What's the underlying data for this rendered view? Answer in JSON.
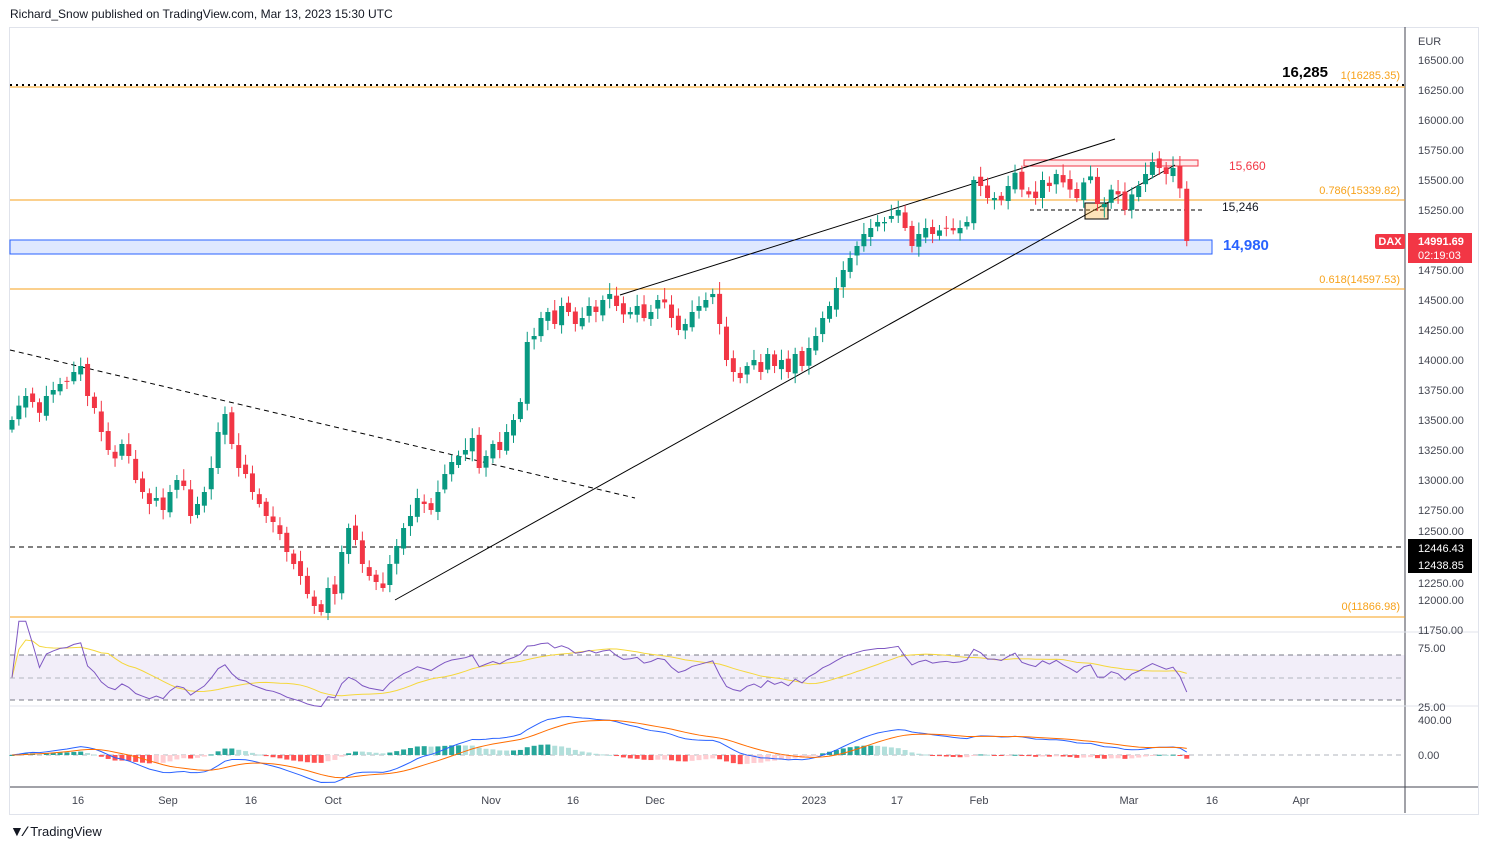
{
  "header": {
    "text": "Richard_Snow published on TradingView.com, Mar 13, 2023 15:30 UTC"
  },
  "logo": {
    "text": "TradingView"
  },
  "colors": {
    "up": "#089981",
    "down": "#f23645",
    "fib": "#f7a21b",
    "zone": "#2962ff",
    "rsi": "#7e57c2",
    "rsi_ma": "#f5d73b",
    "macd": "#2962ff",
    "signal": "#ff6d00"
  },
  "chart_data": {
    "type": "candlestick",
    "symbol": "DAX",
    "currency": "EUR",
    "last_price": "14991.69",
    "countdown": "02:19:03",
    "ylim": [
      11750,
      16600
    ],
    "y_ticks": [
      "16500.00",
      "16250.00",
      "16000.00",
      "15750.00",
      "15500.00",
      "15250.00",
      "14750.00",
      "14500.00",
      "14250.00",
      "14000.00",
      "13750.00",
      "13500.00",
      "13250.00",
      "13000.00",
      "12750.00",
      "12500.00",
      "12250.00",
      "12000.00",
      "11750.00"
    ],
    "x_ticks": [
      "16",
      "Sep",
      "16",
      "Oct",
      "Nov",
      "16",
      "Dec",
      "2023",
      "17",
      "Feb",
      "Mar",
      "16",
      "Apr"
    ],
    "closes": [
      13500,
      13620,
      13700,
      13650,
      13560,
      13700,
      13750,
      13800,
      13820,
      13900,
      13950,
      13700,
      13600,
      13400,
      13250,
      13180,
      13300,
      13200,
      13000,
      12900,
      12800,
      12850,
      12750,
      12900,
      13000,
      12950,
      12700,
      12800,
      12900,
      13100,
      13400,
      13550,
      13300,
      13100,
      13050,
      12900,
      12800,
      12700,
      12650,
      12550,
      12400,
      12300,
      12200,
      12050,
      11950,
      11900,
      12100,
      12050,
      12400,
      12600,
      12500,
      12300,
      12200,
      12150,
      12100,
      12300,
      12450,
      12600,
      12700,
      12850,
      12800,
      12750,
      12900,
      13050,
      13150,
      13200,
      13250,
      13350,
      13100,
      13200,
      13300,
      13250,
      13400,
      13500,
      13650,
      14150,
      14200,
      14350,
      14400,
      14300,
      14450,
      14400,
      14300,
      14350,
      14450,
      14400,
      14500,
      14550,
      14450,
      14380,
      14400,
      14450,
      14350,
      14400,
      14500,
      14480,
      14350,
      14250,
      14300,
      14400,
      14450,
      14500,
      14550,
      14300,
      14000,
      13900,
      13850,
      13950,
      14000,
      13900,
      14050,
      13950,
      14000,
      13900,
      14050,
      13950,
      14100,
      14200,
      14350,
      14450,
      14600,
      14750,
      14850,
      14950,
      15050,
      15100,
      15150,
      15150,
      15200,
      15250,
      15100,
      14950,
      15050,
      15100,
      15050,
      15080,
      15100,
      15080,
      15100,
      15150,
      15500,
      15450,
      15350,
      15350,
      15330,
      15450,
      15560,
      15420,
      15380,
      15350,
      15500,
      15450,
      15550,
      15480,
      15420,
      15350,
      15480,
      15530,
      15300,
      15300,
      15420,
      15380,
      15250,
      15380,
      15450,
      15550,
      15650,
      15600,
      15550,
      15600,
      15430,
      14992
    ],
    "levels": {
      "fib_1": {
        "label": "1(16285.35)",
        "value": 16285.35,
        "big_label": "16,285"
      },
      "fib_786": {
        "label": "0.786(15339.82)",
        "value": 15339.82
      },
      "fib_618": {
        "label": "0.618(14597.53)",
        "value": 14597.53
      },
      "fib_0": {
        "label": "0(11866.98)",
        "value": 11866.98
      },
      "resistance": {
        "label": "15,660",
        "value": 15660
      },
      "neckline": {
        "label": "15,246",
        "value": 15246
      },
      "support_zone": {
        "label": "14,980",
        "value": 14980
      },
      "dashed_a": {
        "label": "12446.43",
        "value": 12446.43
      },
      "dashed_b": {
        "label": "12438.85",
        "value": 12438.85
      }
    },
    "rsi": {
      "ticks": [
        "75.00",
        "25.00"
      ],
      "upper": 70,
      "mid": 50,
      "lower": 30
    },
    "macd": {
      "ticks": [
        "400.00",
        "0.00"
      ]
    }
  }
}
